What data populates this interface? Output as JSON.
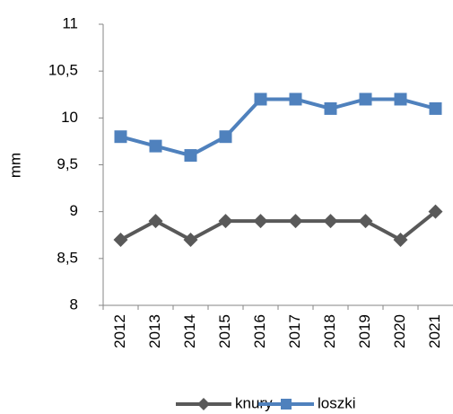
{
  "chart_data": {
    "type": "line",
    "y_label": "mm",
    "categories": [
      "2012",
      "2013",
      "2014",
      "2015",
      "2016",
      "2017",
      "2018",
      "2019",
      "2020",
      "2021"
    ],
    "series": [
      {
        "name": "knury",
        "color": "#595959",
        "marker": "diamond",
        "values": [
          8.7,
          8.9,
          8.7,
          8.9,
          8.9,
          8.9,
          8.9,
          8.9,
          8.7,
          9.0
        ]
      },
      {
        "name": "loszki",
        "color": "#4f81bd",
        "marker": "square",
        "values": [
          9.8,
          9.7,
          9.6,
          9.8,
          10.2,
          10.2,
          10.1,
          10.2,
          10.2,
          10.1
        ]
      }
    ],
    "ylim": [
      8,
      11
    ],
    "yticks": [
      8,
      {
        "value": 8.5,
        "label": "8,5"
      },
      9,
      {
        "value": 9.5,
        "label": "9,5"
      },
      10,
      {
        "value": 10.5,
        "label": "10,5"
      },
      11
    ],
    "legend": "bottom"
  }
}
